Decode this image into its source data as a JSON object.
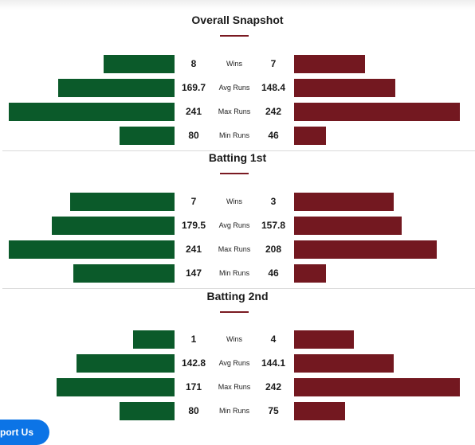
{
  "sections": [
    {
      "title": "Overall Snapshot",
      "rows": [
        {
          "label": "Wins",
          "left": "8",
          "right": "7",
          "left_fraction": 0.43,
          "right_fraction": 0.43
        },
        {
          "label": "Avg Runs",
          "left": "169.7",
          "right": "148.4",
          "left_fraction": 0.7,
          "right_fraction": 0.61
        },
        {
          "label": "Max Runs",
          "left": "241",
          "right": "242",
          "left_fraction": 1.0,
          "right_fraction": 1.0
        },
        {
          "label": "Min Runs",
          "left": "80",
          "right": "46",
          "left_fraction": 0.33,
          "right_fraction": 0.19
        }
      ]
    },
    {
      "title": "Batting 1st",
      "rows": [
        {
          "label": "Wins",
          "left": "7",
          "right": "3",
          "left_fraction": 0.63,
          "right_fraction": 0.6
        },
        {
          "label": "Avg Runs",
          "left": "179.5",
          "right": "157.8",
          "left_fraction": 0.74,
          "right_fraction": 0.65
        },
        {
          "label": "Max Runs",
          "left": "241",
          "right": "208",
          "left_fraction": 1.0,
          "right_fraction": 0.86
        },
        {
          "label": "Min Runs",
          "left": "147",
          "right": "46",
          "left_fraction": 0.61,
          "right_fraction": 0.19
        }
      ]
    },
    {
      "title": "Batting 2nd",
      "rows": [
        {
          "label": "Wins",
          "left": "1",
          "right": "4",
          "left_fraction": 0.25,
          "right_fraction": 0.36
        },
        {
          "label": "Avg Runs",
          "left": "142.8",
          "right": "144.1",
          "left_fraction": 0.59,
          "right_fraction": 0.6
        },
        {
          "label": "Max Runs",
          "left": "171",
          "right": "242",
          "left_fraction": 0.71,
          "right_fraction": 1.0
        },
        {
          "label": "Min Runs",
          "left": "80",
          "right": "75",
          "left_fraction": 0.33,
          "right_fraction": 0.31
        }
      ]
    }
  ],
  "support_button": "port Us",
  "colors": {
    "team_left": "#0b5a2a",
    "team_right": "#731820",
    "accent": "#7a1a22",
    "button": "#0c74e6"
  }
}
